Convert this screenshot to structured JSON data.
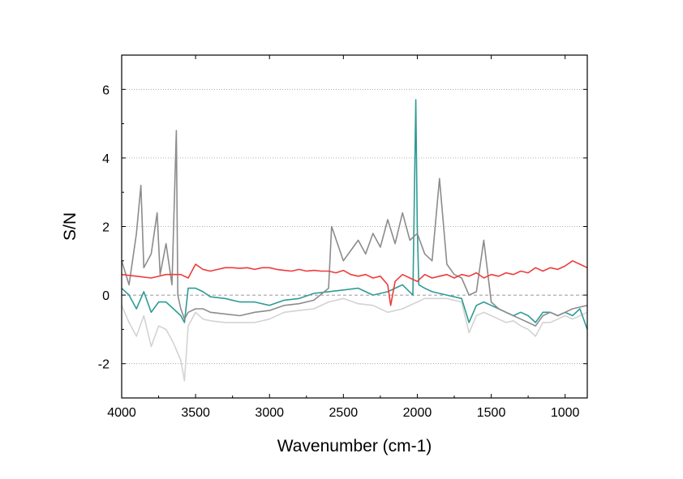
{
  "chart_data": {
    "type": "line",
    "title": "",
    "xlabel": "Wavenumber (cm-1)",
    "ylabel": "S/N",
    "xlim": [
      4000,
      850
    ],
    "ylim": [
      -3,
      7
    ],
    "x_reversed": true,
    "x_ticks": [
      4000,
      3500,
      3000,
      2500,
      2000,
      1500,
      1000
    ],
    "x_tick_labels": [
      "4000",
      "3500",
      "3000",
      "2500",
      "2000",
      "1500",
      "1000"
    ],
    "y_ticks": [
      -2,
      0,
      2,
      4,
      6
    ],
    "y_tick_labels": [
      "-2",
      "0",
      "2",
      "4",
      "6"
    ],
    "grid": "horizontal dotted at y = -2, 2, 4, 6; dashed at y = 0",
    "legend": "none",
    "series": [
      {
        "color": "#d3d3d3",
        "x": [
          4000,
          3950,
          3900,
          3850,
          3800,
          3750,
          3700,
          3650,
          3600,
          3575,
          3550,
          3500,
          3450,
          3400,
          3300,
          3200,
          3100,
          3000,
          2900,
          2800,
          2700,
          2600,
          2500,
          2400,
          2300,
          2200,
          2100,
          2000,
          1950,
          1900,
          1800,
          1700,
          1650,
          1600,
          1550,
          1500,
          1450,
          1400,
          1350,
          1300,
          1250,
          1200,
          1150,
          1100,
          1050,
          1000,
          950,
          900,
          850
        ],
        "y": [
          -0.3,
          -0.8,
          -1.2,
          -0.6,
          -1.5,
          -0.9,
          -1.0,
          -1.4,
          -1.9,
          -2.5,
          -0.9,
          -0.5,
          -0.7,
          -0.75,
          -0.8,
          -0.8,
          -0.8,
          -0.7,
          -0.5,
          -0.45,
          -0.4,
          -0.2,
          -0.1,
          -0.25,
          -0.3,
          -0.5,
          -0.4,
          -0.2,
          -0.1,
          -0.1,
          -0.1,
          -0.2,
          -1.1,
          -0.6,
          -0.5,
          -0.6,
          -0.7,
          -0.8,
          -0.75,
          -0.9,
          -1.0,
          -1.2,
          -0.8,
          -0.8,
          -0.7,
          -0.6,
          -0.7,
          -0.6,
          -0.5
        ]
      },
      {
        "color": "#2e9c94",
        "x": [
          4000,
          3950,
          3900,
          3850,
          3800,
          3750,
          3700,
          3650,
          3600,
          3575,
          3550,
          3500,
          3450,
          3400,
          3300,
          3200,
          3100,
          3000,
          2900,
          2800,
          2700,
          2600,
          2500,
          2400,
          2300,
          2200,
          2100,
          2030,
          2010,
          2000,
          1990,
          1950,
          1900,
          1800,
          1700,
          1650,
          1600,
          1550,
          1500,
          1450,
          1400,
          1350,
          1300,
          1250,
          1200,
          1150,
          1100,
          1050,
          1000,
          950,
          900,
          850
        ],
        "y": [
          0.2,
          0.0,
          -0.4,
          0.1,
          -0.5,
          -0.2,
          -0.2,
          -0.4,
          -0.6,
          -0.8,
          0.2,
          0.2,
          0.1,
          -0.05,
          -0.1,
          -0.2,
          -0.2,
          -0.3,
          -0.15,
          -0.1,
          0.05,
          0.1,
          0.15,
          0.2,
          0.0,
          0.1,
          0.3,
          0.0,
          5.7,
          2.0,
          0.3,
          0.2,
          0.1,
          0.0,
          -0.1,
          -0.8,
          -0.3,
          -0.2,
          -0.3,
          -0.4,
          -0.5,
          -0.6,
          -0.5,
          -0.6,
          -0.8,
          -0.5,
          -0.5,
          -0.6,
          -0.5,
          -0.6,
          -0.4,
          -1.0
        ]
      },
      {
        "color": "#8c8c8c",
        "x": [
          4000,
          3950,
          3900,
          3870,
          3850,
          3800,
          3760,
          3740,
          3700,
          3660,
          3630,
          3620,
          3600,
          3575,
          3550,
          3500,
          3450,
          3400,
          3300,
          3200,
          3100,
          3000,
          2900,
          2800,
          2700,
          2600,
          2580,
          2500,
          2450,
          2400,
          2350,
          2300,
          2250,
          2200,
          2150,
          2100,
          2050,
          2000,
          1950,
          1900,
          1850,
          1800,
          1750,
          1700,
          1650,
          1600,
          1550,
          1500,
          1450,
          1400,
          1350,
          1300,
          1250,
          1200,
          1150,
          1100,
          1050,
          1000,
          950,
          900,
          850
        ],
        "y": [
          1.0,
          0.3,
          1.8,
          3.2,
          0.8,
          1.2,
          2.4,
          0.6,
          1.5,
          0.3,
          4.8,
          0.0,
          -0.4,
          -0.7,
          -0.5,
          -0.4,
          -0.4,
          -0.5,
          -0.55,
          -0.6,
          -0.5,
          -0.45,
          -0.3,
          -0.25,
          -0.15,
          0.2,
          2.0,
          1.0,
          1.3,
          1.6,
          1.2,
          1.8,
          1.4,
          2.2,
          1.5,
          2.4,
          1.6,
          1.8,
          1.2,
          1.0,
          3.4,
          0.9,
          0.6,
          0.5,
          0.0,
          0.1,
          1.6,
          -0.2,
          -0.4,
          -0.5,
          -0.6,
          -0.7,
          -0.8,
          -0.9,
          -0.6,
          -0.5,
          -0.6,
          -0.5,
          -0.4,
          -0.35,
          -0.3
        ]
      },
      {
        "color": "#ee3b3b",
        "x": [
          4000,
          3900,
          3800,
          3700,
          3600,
          3550,
          3500,
          3450,
          3400,
          3350,
          3300,
          3250,
          3200,
          3150,
          3100,
          3050,
          3000,
          2950,
          2900,
          2850,
          2800,
          2750,
          2700,
          2650,
          2600,
          2550,
          2500,
          2450,
          2400,
          2350,
          2300,
          2250,
          2200,
          2180,
          2150,
          2100,
          2050,
          2000,
          1950,
          1900,
          1850,
          1800,
          1750,
          1700,
          1650,
          1600,
          1550,
          1500,
          1450,
          1400,
          1350,
          1300,
          1250,
          1200,
          1150,
          1100,
          1050,
          1000,
          950,
          900,
          850
        ],
        "y": [
          0.6,
          0.55,
          0.5,
          0.6,
          0.6,
          0.5,
          0.9,
          0.75,
          0.7,
          0.75,
          0.8,
          0.8,
          0.78,
          0.8,
          0.75,
          0.8,
          0.8,
          0.75,
          0.72,
          0.7,
          0.75,
          0.7,
          0.72,
          0.7,
          0.7,
          0.65,
          0.72,
          0.6,
          0.55,
          0.6,
          0.5,
          0.55,
          0.3,
          -0.3,
          0.4,
          0.6,
          0.5,
          0.4,
          0.6,
          0.5,
          0.55,
          0.6,
          0.5,
          0.6,
          0.55,
          0.65,
          0.5,
          0.6,
          0.55,
          0.65,
          0.6,
          0.7,
          0.65,
          0.8,
          0.7,
          0.8,
          0.75,
          0.85,
          1.0,
          0.9,
          0.8
        ]
      }
    ]
  }
}
